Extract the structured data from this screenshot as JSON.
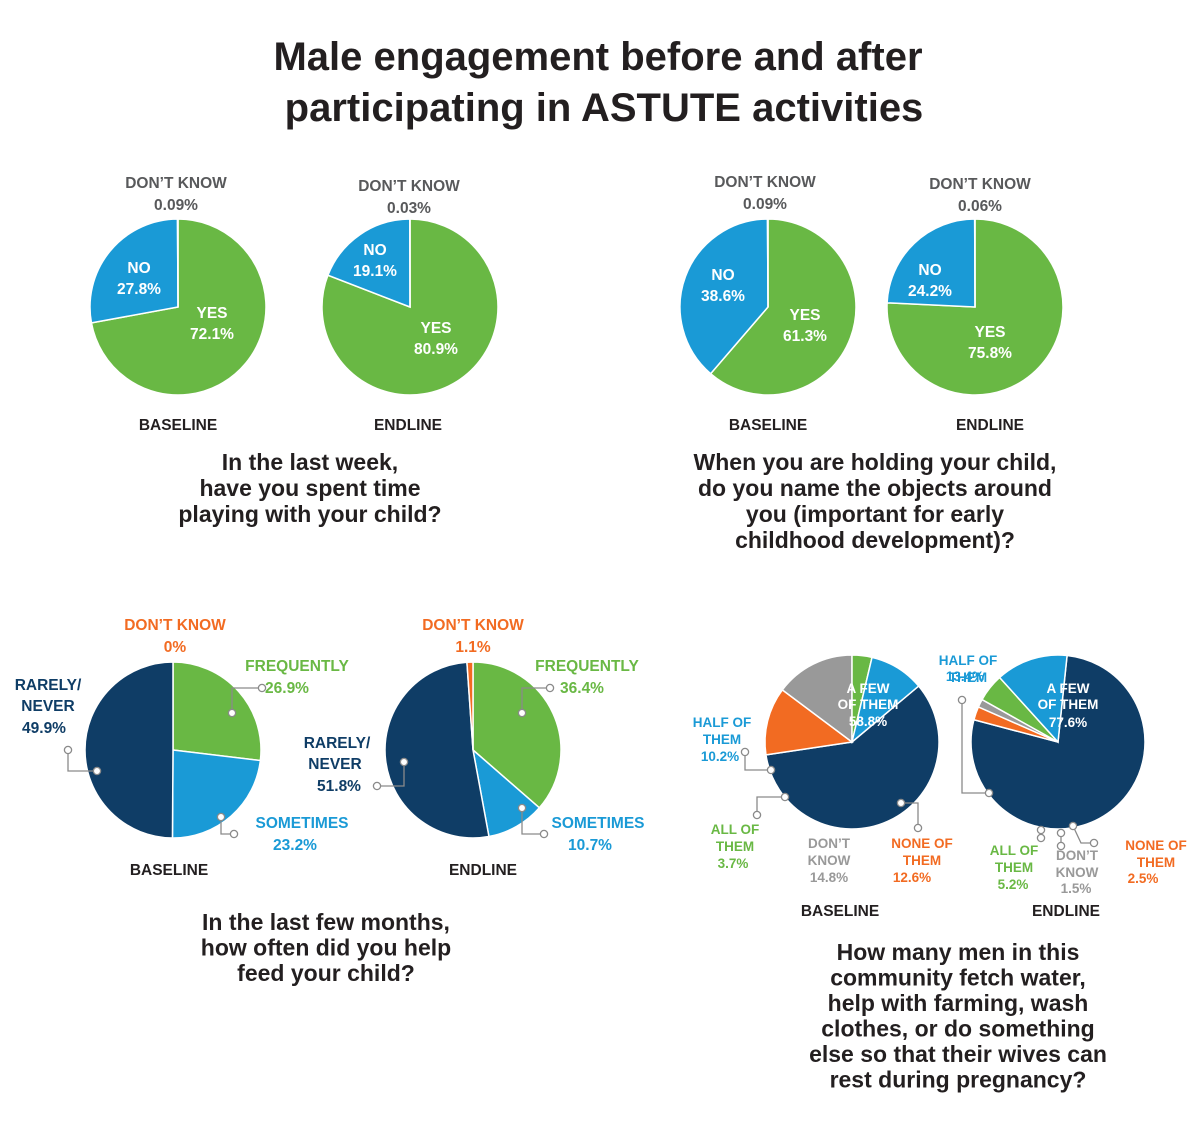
{
  "title": {
    "line1": "Male engagement before and after",
    "line2": "participating in ASTUTE activities"
  },
  "colors": {
    "green": "#69b844",
    "blue": "#1a9ad6",
    "navy": "#0f3d66",
    "orange": "#f26b22",
    "gray": "#999999",
    "dark_text": "#231f20",
    "gray_text": "#58595b"
  },
  "chart_data": [
    {
      "type": "pie",
      "id": "play",
      "question": [
        "In the last week,",
        "have you spent time",
        "playing with your child?"
      ],
      "charts": [
        {
          "label": "BASELINE",
          "slices": [
            {
              "name": "YES",
              "value": 72.1,
              "display": "72.1%",
              "color": "green"
            },
            {
              "name": "NO",
              "value": 27.8,
              "display": "27.8%",
              "color": "blue"
            },
            {
              "name": "DON’T KNOW",
              "value": 0.09,
              "display": "0.09%",
              "color": "gray"
            }
          ]
        },
        {
          "label": "ENDLINE",
          "slices": [
            {
              "name": "YES",
              "value": 80.9,
              "display": "80.9%",
              "color": "green"
            },
            {
              "name": "NO",
              "value": 19.1,
              "display": "19.1%",
              "color": "blue"
            },
            {
              "name": "DON’T KNOW",
              "value": 0.03,
              "display": "0.03%",
              "color": "gray"
            }
          ]
        }
      ]
    },
    {
      "type": "pie",
      "id": "name_objects",
      "question": [
        "When you are holding your child,",
        "do you name the objects around",
        "you (important for early",
        "childhood development)?"
      ],
      "charts": [
        {
          "label": "BASELINE",
          "slices": [
            {
              "name": "YES",
              "value": 61.3,
              "display": "61.3%",
              "color": "green"
            },
            {
              "name": "NO",
              "value": 38.6,
              "display": "38.6%",
              "color": "blue"
            },
            {
              "name": "DON’T KNOW",
              "value": 0.09,
              "display": "0.09%",
              "color": "gray"
            }
          ]
        },
        {
          "label": "ENDLINE",
          "slices": [
            {
              "name": "YES",
              "value": 75.8,
              "display": "75.8%",
              "color": "green"
            },
            {
              "name": "NO",
              "value": 24.2,
              "display": "24.2%",
              "color": "blue"
            },
            {
              "name": "DON’T KNOW",
              "value": 0.06,
              "display": "0.06%",
              "color": "gray"
            }
          ]
        }
      ]
    },
    {
      "type": "pie",
      "id": "feed",
      "question": [
        "In the last few months,",
        "how often did you help",
        "feed your child?"
      ],
      "charts": [
        {
          "label": "BASELINE",
          "slices": [
            {
              "name": "FREQUENTLY",
              "value": 26.9,
              "display": "26.9%",
              "color": "green"
            },
            {
              "name": "SOMETIMES",
              "value": 23.2,
              "display": "23.2%",
              "color": "blue"
            },
            {
              "name": "RARELY/ NEVER",
              "value": 49.9,
              "display": "49.9%",
              "color": "navy"
            },
            {
              "name": "DON’T KNOW",
              "value": 0,
              "display": "0%",
              "color": "orange"
            }
          ]
        },
        {
          "label": "ENDLINE",
          "slices": [
            {
              "name": "FREQUENTLY",
              "value": 36.4,
              "display": "36.4%",
              "color": "green"
            },
            {
              "name": "SOMETIMES",
              "value": 10.7,
              "display": "10.7%",
              "color": "blue"
            },
            {
              "name": "RARELY/ NEVER",
              "value": 51.8,
              "display": "51.8%",
              "color": "navy"
            },
            {
              "name": "DON’T KNOW",
              "value": 1.1,
              "display": "1.1%",
              "color": "orange"
            }
          ]
        }
      ]
    },
    {
      "type": "pie",
      "id": "community",
      "question": [
        "How many men in this",
        "community fetch water,",
        "help with farming, wash",
        "clothes, or do something",
        "else so that their wives can",
        "rest during pregnancy?"
      ],
      "charts": [
        {
          "label": "BASELINE",
          "slices": [
            {
              "name": "A FEW OF THEM",
              "value": 58.8,
              "display": "58.8%",
              "color": "navy"
            },
            {
              "name": "NONE OF THEM",
              "value": 12.6,
              "display": "12.6%",
              "color": "orange"
            },
            {
              "name": "DON’T KNOW",
              "value": 14.8,
              "display": "14.8%",
              "color": "gray"
            },
            {
              "name": "ALL OF THEM",
              "value": 3.7,
              "display": "3.7%",
              "color": "green"
            },
            {
              "name": "HALF OF THEM",
              "value": 10.2,
              "display": "10.2%",
              "color": "blue"
            }
          ]
        },
        {
          "label": "ENDLINE",
          "slices": [
            {
              "name": "A FEW OF THEM",
              "value": 77.6,
              "display": "77.6%",
              "color": "navy"
            },
            {
              "name": "NONE OF THEM",
              "value": 2.5,
              "display": "2.5%",
              "color": "orange"
            },
            {
              "name": "DON’T KNOW",
              "value": 1.5,
              "display": "1.5%",
              "color": "gray"
            },
            {
              "name": "ALL OF THEM",
              "value": 5.2,
              "display": "5.2%",
              "color": "green"
            },
            {
              "name": "HALF OF THEM",
              "value": 13.4,
              "display": "13.4%",
              "color": "blue"
            }
          ]
        }
      ]
    }
  ]
}
